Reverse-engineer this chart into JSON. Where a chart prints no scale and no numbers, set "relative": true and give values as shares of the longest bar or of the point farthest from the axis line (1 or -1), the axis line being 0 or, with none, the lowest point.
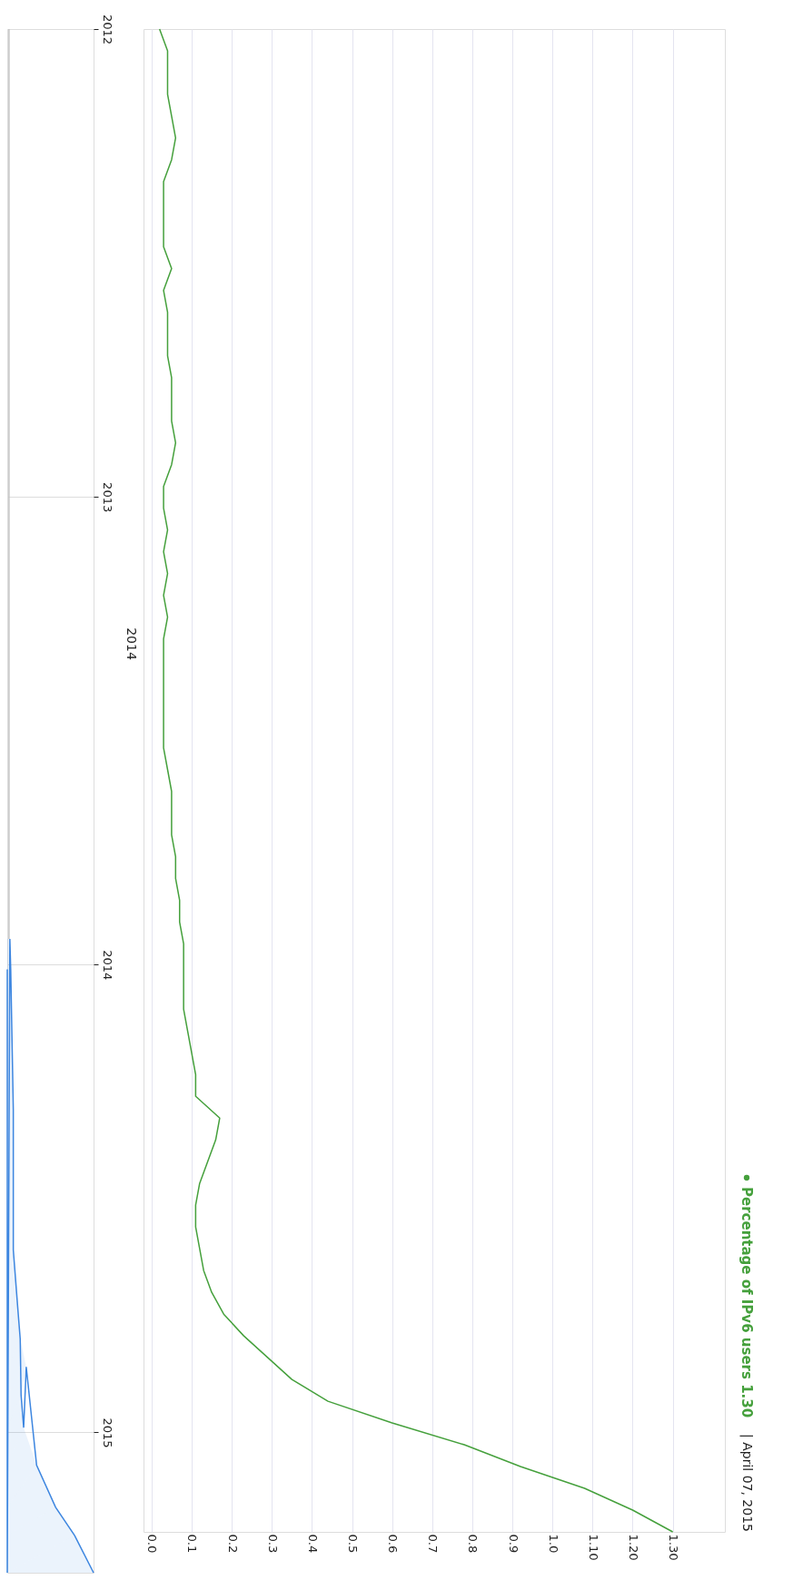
{
  "chart_data": [
    {
      "type": "line",
      "orientation": "horizontal",
      "relative": true,
      "grid": "y",
      "series": [
        {
          "color": "#c4c4c4",
          "x": [
            2012.0,
            2012.5,
            2013.0,
            2013.5,
            2013.945
          ],
          "values": [
            0.02,
            0.02,
            0.02,
            0.02,
            0.02
          ]
        },
        {
          "type": "area",
          "color": "#3d86e0",
          "x": [
            2013.945,
            2014.01,
            2014.31,
            2014.61,
            2014.73,
            2014.8,
            2014.86,
            2014.92,
            2014.99,
            2015.07,
            2015.16,
            2015.22,
            2015.3
          ],
          "values": [
            0.03,
            0.04,
            0.07,
            0.07,
            0.12,
            0.15,
            0.22,
            0.16,
            0.19,
            0.34,
            0.56,
            0.78,
            1
          ]
        }
      ],
      "ylim": [
        2015.3,
        2012.0
      ],
      "yticks": [
        2012,
        2013,
        2014,
        2015
      ]
    },
    {
      "type": "line",
      "orientation": "horizontal",
      "grid": "x",
      "legend": "right",
      "categories": [
        null,
        null,
        null,
        null,
        null,
        null,
        null,
        null,
        null,
        null,
        null,
        null,
        null,
        null,
        null,
        null,
        null,
        null,
        null,
        null,
        null,
        null,
        null,
        null,
        null,
        null,
        null,
        null,
        null,
        null,
        null,
        null,
        null,
        null,
        null,
        null,
        null,
        null,
        null,
        null,
        null,
        null,
        null,
        null,
        null,
        null,
        null,
        null,
        null,
        null,
        null,
        null,
        null,
        null,
        null,
        null,
        null,
        null,
        null,
        null,
        null,
        null,
        null,
        null,
        null,
        null,
        null,
        null,
        null,
        null
      ],
      "series": [
        {
          "name": "Percentage of IPv6 users 1.30",
          "color": "#45a03c",
          "values": [
            0.02,
            0.04,
            0.04,
            0.04,
            0.05,
            0.06,
            0.05,
            0.03,
            0.03,
            0.03,
            0.03,
            0.05,
            0.03,
            0.04,
            0.04,
            0.04,
            0.05,
            0.05,
            0.05,
            0.06,
            0.05,
            0.03,
            0.03,
            0.04,
            0.03,
            0.04,
            0.03,
            0.04,
            0.03,
            0.03,
            0.03,
            0.03,
            0.03,
            0.03,
            0.04,
            0.05,
            0.05,
            0.05,
            0.06,
            0.06,
            0.07,
            0.07,
            0.08,
            0.08,
            0.08,
            0.08,
            0.09,
            0.1,
            0.11,
            0.11,
            0.17,
            0.16,
            0.14,
            0.12,
            0.11,
            0.11,
            0.12,
            0.13,
            0.15,
            0.18,
            0.23,
            0.29,
            0.35,
            0.44,
            0.6,
            0.78,
            0.92,
            1.08,
            1.2,
            1.3
          ]
        }
      ],
      "xlim": [
        -0.02,
        1.43
      ],
      "xticks": [
        {
          "value": 0,
          "label": "0.0"
        },
        {
          "value": 0.1,
          "label": "0.1"
        },
        {
          "value": 0.2,
          "label": "0.2"
        },
        {
          "value": 0.3,
          "label": "0.3"
        },
        {
          "value": 0.4,
          "label": "0.4"
        },
        {
          "value": 0.5,
          "label": "0.5"
        },
        {
          "value": 0.6,
          "label": "0.6"
        },
        {
          "value": 0.7,
          "label": "0.7"
        },
        {
          "value": 0.8,
          "label": "0.8"
        },
        {
          "value": 0.9,
          "label": "0.9"
        },
        {
          "value": 1,
          "label": "1.0"
        },
        {
          "value": 1.1,
          "label": "1.10"
        },
        {
          "value": 1.2,
          "label": "1.20"
        },
        {
          "value": 1.3,
          "label": "1.30"
        }
      ],
      "annotations": [
        "2014",
        "| April 07, 2015"
      ]
    }
  ]
}
